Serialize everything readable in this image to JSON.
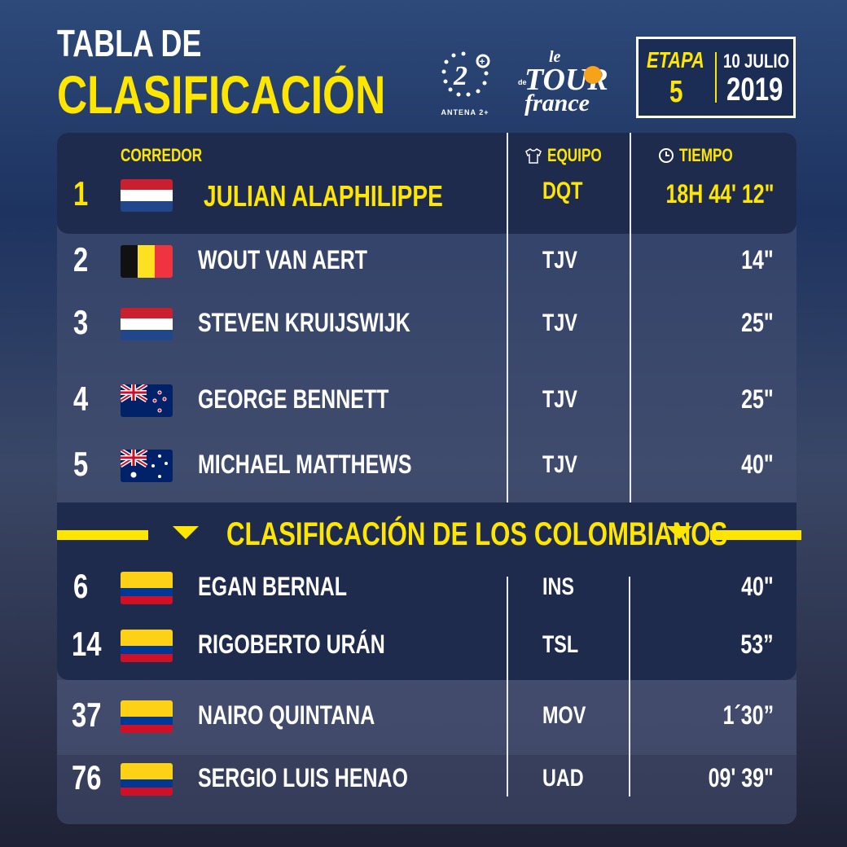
{
  "header": {
    "title_line1": "TABLA DE",
    "title_line2": "CLASIFICACIÓN",
    "logo_antena": "ANTENA 2+",
    "logo_tour": "le Tour de France",
    "stage_label": "ETAPA",
    "stage_number": "5",
    "date": "10 JULIO",
    "year": "2019"
  },
  "columns": {
    "rider": "CORREDOR",
    "team": "EQUIPO",
    "time": "TIEMPO",
    "team_icon": "jersey-icon",
    "time_icon": "clock-icon"
  },
  "section_title": "CLASIFICACIÓN DE LOS COLOMBIANOS",
  "colors": {
    "accent": "#ffe600",
    "panel": "#1f2b4d"
  },
  "top": [
    {
      "pos": "1",
      "flag": "nl",
      "name": "JULIAN ALAPHILIPPE",
      "team": "DQT",
      "time": "18H 44' 12\""
    },
    {
      "pos": "2",
      "flag": "be",
      "name": "WOUT VAN AERT",
      "team": "TJV",
      "time": "14\""
    },
    {
      "pos": "3",
      "flag": "nl",
      "name": "STEVEN KRUIJSWIJK",
      "team": "TJV",
      "time": "25\""
    },
    {
      "pos": "4",
      "flag": "nz",
      "name": "GEORGE BENNETT",
      "team": "TJV",
      "time": "25\""
    },
    {
      "pos": "5",
      "flag": "au",
      "name": "MICHAEL MATTHEWS",
      "team": "TJV",
      "time": "40\""
    }
  ],
  "colombians": [
    {
      "pos": "6",
      "flag": "co",
      "name": "EGAN BERNAL",
      "team": "INS",
      "time": "40\""
    },
    {
      "pos": "14",
      "flag": "co",
      "name": "RIGOBERTO URÁN",
      "team": "TSL",
      "time": "53”"
    },
    {
      "pos": "37",
      "flag": "co",
      "name": "NAIRO QUINTANA",
      "team": "MOV",
      "time": "1´30”"
    },
    {
      "pos": "76",
      "flag": "co",
      "name": "SERGIO LUIS HENAO",
      "team": "UAD",
      "time": "09' 39\""
    }
  ]
}
